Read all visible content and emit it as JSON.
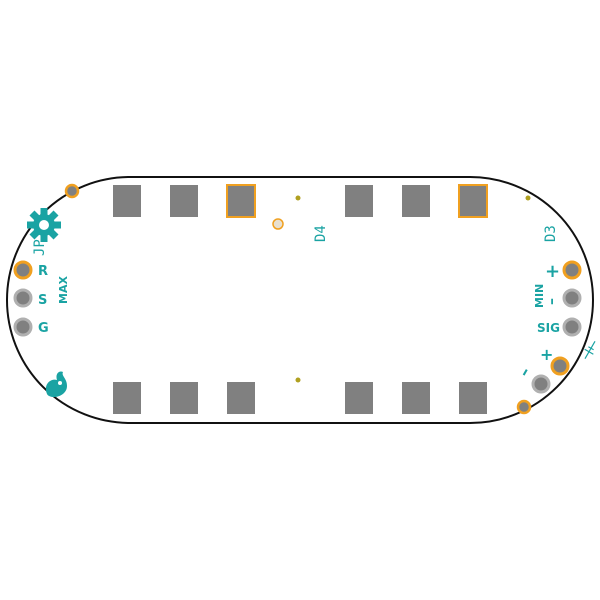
{
  "colors": {
    "outline": "#111111",
    "pad": "#808080",
    "copper": "#f0a020",
    "silk": "#1aa3a3",
    "via_dot": "#b0a020"
  },
  "labels": {
    "left_pin_r": "R",
    "left_pin_s": "S",
    "left_pin_g": "G",
    "max": "MAX",
    "right_plus": "+",
    "right_min": "MIN",
    "right_minus": "–",
    "right_sig": "SIG",
    "batt_plus": "+",
    "batt_minus": "–",
    "ref_jp": "JP",
    "ref_d4": "D4",
    "ref_d3": "D3"
  },
  "icons": {
    "logo_top": "gear-logo-icon",
    "logo_bottom": "flame-logo-icon"
  }
}
